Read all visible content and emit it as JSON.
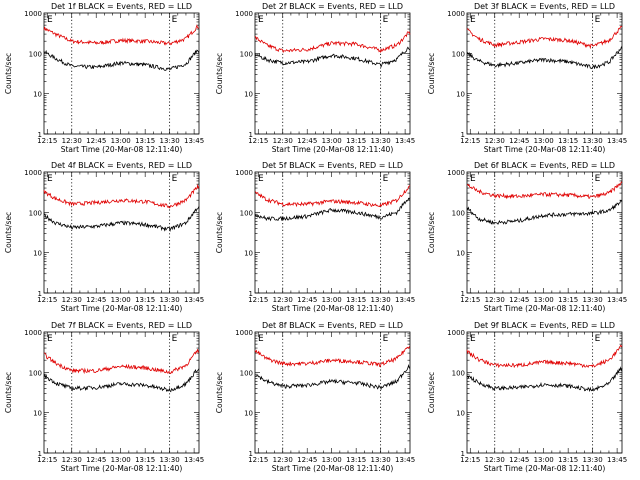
{
  "layout": {
    "rows": 3,
    "cols": 3
  },
  "colors": {
    "events": "#000000",
    "lld": "#e00000"
  },
  "chart_data": [
    {
      "type": "line",
      "title": "Det 1f BLACK = Events, RED = LLD",
      "xlabel": "Start Time (20-Mar-08 12:11:40)",
      "ylabel": "Counts/sec",
      "yscale": "log",
      "ylim": [
        1,
        1000
      ],
      "tick_labels_x": [
        "12:15",
        "12:30",
        "12:45",
        "13:00",
        "13:15",
        "13:30",
        "13:45"
      ],
      "tick_labels_y": [
        "1",
        "10",
        "100",
        "1000"
      ],
      "xlim": [
        "12:13",
        "13:48"
      ],
      "vlines": [
        "12:30",
        "13:30"
      ],
      "markers": [
        "E",
        "E"
      ],
      "x": [
        "12:13",
        "12:20",
        "12:30",
        "12:45",
        "13:00",
        "13:15",
        "13:30",
        "13:40",
        "13:47"
      ],
      "series": [
        {
          "name": "LLD",
          "values": [
            420,
            300,
            200,
            180,
            210,
            200,
            175,
            230,
            460
          ]
        },
        {
          "name": "Events",
          "values": [
            110,
            75,
            48,
            45,
            58,
            52,
            40,
            55,
            120
          ]
        }
      ]
    },
    {
      "type": "line",
      "title": "Det 2f BLACK = Events, RED = LLD",
      "xlabel": "Start Time (20-Mar-08 12:11:40)",
      "ylabel": "Counts/sec",
      "yscale": "log",
      "ylim": [
        1,
        1000
      ],
      "tick_labels_x": [
        "12:15",
        "12:30",
        "12:45",
        "13:00",
        "13:15",
        "13:30",
        "13:45"
      ],
      "tick_labels_y": [
        "1",
        "10",
        "100",
        "1000"
      ],
      "xlim": [
        "12:13",
        "13:48"
      ],
      "vlines": [
        "12:30",
        "13:30"
      ],
      "markers": [
        "E",
        "E"
      ],
      "x": [
        "12:13",
        "12:20",
        "12:30",
        "12:45",
        "13:00",
        "13:15",
        "13:30",
        "13:40",
        "13:47"
      ],
      "series": [
        {
          "name": "LLD",
          "values": [
            250,
            160,
            115,
            125,
            180,
            170,
            120,
            160,
            320
          ]
        },
        {
          "name": "Events",
          "values": [
            95,
            70,
            58,
            62,
            90,
            75,
            52,
            72,
            140
          ]
        }
      ]
    },
    {
      "type": "line",
      "title": "Det 3f BLACK = Events, RED = LLD",
      "xlabel": "Start Time (20-Mar-08 12:11:40)",
      "ylabel": "Counts/sec",
      "yscale": "log",
      "ylim": [
        1,
        1000
      ],
      "tick_labels_x": [
        "12:15",
        "12:30",
        "12:45",
        "13:00",
        "13:15",
        "13:30",
        "13:45"
      ],
      "tick_labels_y": [
        "1",
        "10",
        "100",
        "1000"
      ],
      "xlim": [
        "12:13",
        "13:48"
      ],
      "vlines": [
        "12:30",
        "13:30"
      ],
      "markers": [
        "E",
        "E"
      ],
      "x": [
        "12:13",
        "12:20",
        "12:30",
        "12:45",
        "13:00",
        "13:15",
        "13:30",
        "13:40",
        "13:47"
      ],
      "series": [
        {
          "name": "LLD",
          "values": [
            380,
            230,
            160,
            190,
            230,
            210,
            150,
            210,
            420
          ]
        },
        {
          "name": "Events",
          "values": [
            100,
            65,
            50,
            58,
            70,
            62,
            45,
            60,
            130
          ]
        }
      ]
    },
    {
      "type": "line",
      "title": "Det 4f BLACK = Events, RED = LLD",
      "xlabel": "Start Time (20-Mar-08 12:11:40)",
      "ylabel": "Counts/sec",
      "yscale": "log",
      "ylim": [
        1,
        1000
      ],
      "tick_labels_x": [
        "12:15",
        "12:30",
        "12:45",
        "13:00",
        "13:15",
        "13:30",
        "13:45"
      ],
      "tick_labels_y": [
        "1",
        "10",
        "100",
        "1000"
      ],
      "xlim": [
        "12:13",
        "13:48"
      ],
      "vlines": [
        "12:30",
        "13:30"
      ],
      "markers": [
        "E",
        "E"
      ],
      "x": [
        "12:13",
        "12:20",
        "12:30",
        "12:45",
        "13:00",
        "13:15",
        "13:30",
        "13:40",
        "13:47"
      ],
      "series": [
        {
          "name": "LLD",
          "values": [
            330,
            220,
            160,
            175,
            200,
            185,
            140,
            200,
            420
          ]
        },
        {
          "name": "Events",
          "values": [
            85,
            55,
            42,
            45,
            55,
            50,
            38,
            55,
            130
          ]
        }
      ]
    },
    {
      "type": "line",
      "title": "Det 5f BLACK = Events, RED = LLD",
      "xlabel": "Start Time (20-Mar-08 12:11:40)",
      "ylabel": "Counts/sec",
      "yscale": "log",
      "ylim": [
        1,
        1000
      ],
      "tick_labels_x": [
        "12:15",
        "12:30",
        "12:45",
        "13:00",
        "13:15",
        "13:30",
        "13:45"
      ],
      "tick_labels_y": [
        "1",
        "10",
        "100",
        "1000"
      ],
      "xlim": [
        "12:13",
        "13:48"
      ],
      "vlines": [
        "12:30",
        "13:30"
      ],
      "markers": [
        "E",
        "E"
      ],
      "x": [
        "12:13",
        "12:20",
        "12:30",
        "12:45",
        "13:00",
        "13:15",
        "13:30",
        "13:40",
        "13:47"
      ],
      "series": [
        {
          "name": "LLD",
          "values": [
            310,
            210,
            160,
            160,
            190,
            175,
            145,
            200,
            420
          ]
        },
        {
          "name": "Events",
          "values": [
            90,
            70,
            70,
            80,
            115,
            100,
            75,
            100,
            230
          ]
        }
      ]
    },
    {
      "type": "line",
      "title": "Det 6f BLACK = Events, RED = LLD",
      "xlabel": "Start Time (20-Mar-08 12:11:40)",
      "ylabel": "Counts/sec",
      "yscale": "log",
      "ylim": [
        1,
        1000
      ],
      "tick_labels_x": [
        "12:15",
        "12:30",
        "12:45",
        "13:00",
        "13:15",
        "13:30",
        "13:45"
      ],
      "tick_labels_y": [
        "1",
        "10",
        "100",
        "1000"
      ],
      "xlim": [
        "12:13",
        "13:48"
      ],
      "vlines": [
        "12:30",
        "13:30"
      ],
      "markers": [
        "E",
        "E"
      ],
      "x": [
        "12:13",
        "12:20",
        "12:30",
        "12:45",
        "13:00",
        "13:15",
        "13:30",
        "13:40",
        "13:47"
      ],
      "series": [
        {
          "name": "LLD",
          "values": [
            480,
            330,
            260,
            250,
            280,
            270,
            240,
            300,
            520
          ]
        },
        {
          "name": "Events",
          "values": [
            130,
            70,
            55,
            62,
            85,
            90,
            95,
            110,
            180
          ]
        }
      ]
    },
    {
      "type": "line",
      "title": "Det 7f BLACK = Events, RED = LLD",
      "xlabel": "Start Time (20-Mar-08 12:11:40)",
      "ylabel": "Counts/sec",
      "yscale": "log",
      "ylim": [
        1,
        1000
      ],
      "tick_labels_x": [
        "12:15",
        "12:30",
        "12:45",
        "13:00",
        "13:15",
        "13:30",
        "13:45"
      ],
      "tick_labels_y": [
        "1",
        "10",
        "100",
        "1000"
      ],
      "xlim": [
        "12:13",
        "13:48"
      ],
      "vlines": [
        "12:30",
        "13:30"
      ],
      "markers": [
        "E",
        "E"
      ],
      "x": [
        "12:13",
        "12:20",
        "12:30",
        "12:45",
        "13:00",
        "13:15",
        "13:30",
        "13:40",
        "13:47"
      ],
      "series": [
        {
          "name": "LLD",
          "values": [
            280,
            170,
            110,
            110,
            140,
            130,
            100,
            150,
            340
          ]
        },
        {
          "name": "Events",
          "values": [
            85,
            55,
            40,
            42,
            52,
            48,
            36,
            52,
            120
          ]
        }
      ]
    },
    {
      "type": "line",
      "title": "Det 8f BLACK = Events, RED = LLD",
      "xlabel": "Start Time (20-Mar-08 12:11:40)",
      "ylabel": "Counts/sec",
      "yscale": "log",
      "ylim": [
        1,
        1000
      ],
      "tick_labels_x": [
        "12:15",
        "12:30",
        "12:45",
        "13:00",
        "13:15",
        "13:30",
        "13:45"
      ],
      "tick_labels_y": [
        "1",
        "10",
        "100",
        "1000"
      ],
      "xlim": [
        "12:13",
        "13:48"
      ],
      "vlines": [
        "12:30",
        "13:30"
      ],
      "markers": [
        "E",
        "E"
      ],
      "x": [
        "12:13",
        "12:20",
        "12:30",
        "12:45",
        "13:00",
        "13:15",
        "13:30",
        "13:40",
        "13:47"
      ],
      "series": [
        {
          "name": "LLD",
          "values": [
            340,
            220,
            165,
            165,
            200,
            185,
            155,
            220,
            440
          ]
        },
        {
          "name": "Events",
          "values": [
            90,
            60,
            45,
            48,
            60,
            55,
            42,
            60,
            140
          ]
        }
      ]
    },
    {
      "type": "line",
      "title": "Det 9f BLACK = Events, RED = LLD",
      "xlabel": "Start Time (20-Mar-08 12:11:40)",
      "ylabel": "Counts/sec",
      "yscale": "log",
      "ylim": [
        1,
        1000
      ],
      "tick_labels_x": [
        "12:15",
        "12:30",
        "12:45",
        "13:00",
        "13:15",
        "13:30",
        "13:45"
      ],
      "tick_labels_y": [
        "1",
        "10",
        "100",
        "1000"
      ],
      "xlim": [
        "12:13",
        "13:48"
      ],
      "vlines": [
        "12:30",
        "13:30"
      ],
      "markers": [
        "E",
        "E"
      ],
      "x": [
        "12:13",
        "12:20",
        "12:30",
        "12:45",
        "13:00",
        "13:15",
        "13:30",
        "13:40",
        "13:47"
      ],
      "series": [
        {
          "name": "LLD",
          "values": [
            330,
            210,
            150,
            150,
            180,
            170,
            140,
            200,
            420
          ]
        },
        {
          "name": "Events",
          "values": [
            85,
            55,
            40,
            42,
            50,
            46,
            36,
            52,
            120
          ]
        }
      ]
    }
  ]
}
